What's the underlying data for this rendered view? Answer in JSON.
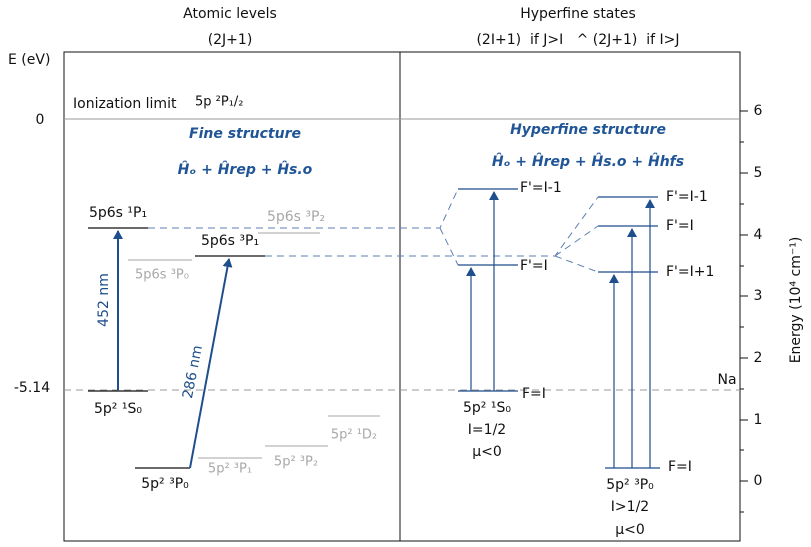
{
  "header": {
    "left_title": "Atomic levels",
    "left_subtitle": "(2J+1)",
    "right_title": "Hyperfine states",
    "right_subtitle": "(2I+1)  if J>I   ^ (2J+1)  if I>J"
  },
  "left_axis": {
    "label": "E (eV)",
    "ticks": [
      "0",
      "-5.14"
    ]
  },
  "right_axis": {
    "label": "Energy (10⁴ cm⁻¹)",
    "ticks": [
      "6",
      "5",
      "4",
      "3",
      "2",
      "1",
      "0"
    ],
    "marker": "Na"
  },
  "ionization": {
    "label": "Ionization limit",
    "state": "5p ²P₁/₂"
  },
  "fine": {
    "title": "Fine structure",
    "hamiltonian": "Ĥₒ + Ĥrep + Ĥs.o"
  },
  "hyperfine": {
    "title": "Hyperfine structure",
    "hamiltonian": "Ĥₒ + Ĥrep + Ĥs.o + Ĥhfs"
  },
  "levels": [
    "5p6s ¹P₁",
    "5p6s ³P₁",
    "5p6s ³P₂",
    "5p6s ³P₀",
    "5p² ¹S₀",
    "5p² ³P₀",
    "5p² ³P₁",
    "5p² ³P₂",
    "5p² ¹D₂"
  ],
  "transitions": [
    "452 nm",
    "286 nm"
  ],
  "hf_left": {
    "levels": [
      "F'=I-1",
      "F'=I",
      "F=I"
    ],
    "state": "5p² ¹S₀",
    "spin": "I=1/2",
    "moment": "μ<0"
  },
  "hf_right": {
    "levels": [
      "F'=I-1",
      "F'=I",
      "F'=I+1",
      "F=I"
    ],
    "state": "5p² ³P₀",
    "spin": "I>1/2",
    "moment": "μ<0"
  }
}
